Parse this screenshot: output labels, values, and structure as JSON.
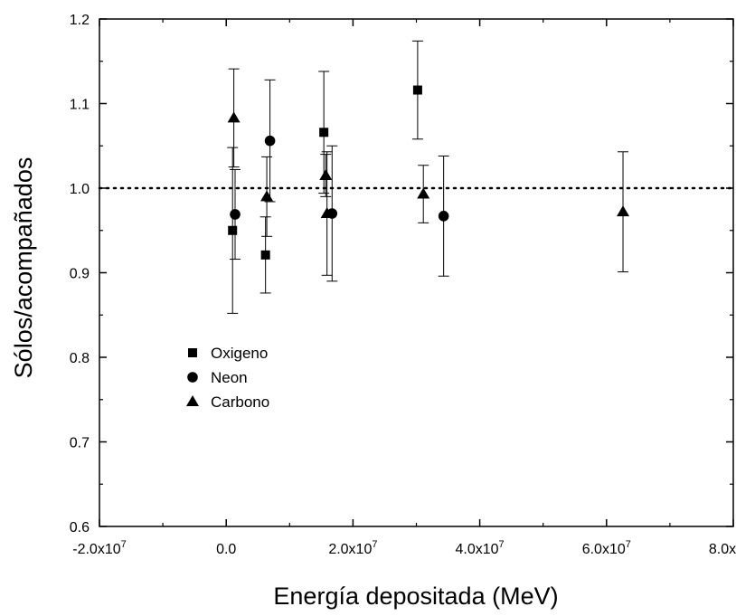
{
  "chart_data": {
    "type": "scatter",
    "title": "",
    "xlabel": "Energía depositada (MeV)",
    "ylabel": "Sólos/acompañados",
    "xlim": [
      -20000000,
      80000000
    ],
    "ylim": [
      0.6,
      1.2
    ],
    "x_ticks": [
      {
        "value": -20000000,
        "mantissa": "-2.0x10",
        "exp": "7"
      },
      {
        "value": 0,
        "mantissa": "0.0",
        "exp": ""
      },
      {
        "value": 20000000,
        "mantissa": "2.0x10",
        "exp": "7"
      },
      {
        "value": 40000000,
        "mantissa": "4.0x10",
        "exp": "7"
      },
      {
        "value": 60000000,
        "mantissa": "6.0x10",
        "exp": "7"
      },
      {
        "value": 80000000,
        "mantissa": "8.0x10",
        "exp": "7"
      }
    ],
    "y_ticks": [
      "0.6",
      "0.7",
      "0.8",
      "0.9",
      "1.0",
      "1.1",
      "1.2"
    ],
    "reference_line": {
      "y": 1.0,
      "style": "dotted"
    },
    "grid": false,
    "legend_position": "center-left",
    "series": [
      {
        "name": "Oxigeno",
        "marker": "square",
        "points": [
          {
            "x": 1000000,
            "y": 0.95,
            "err": 0.098
          },
          {
            "x": 6200000,
            "y": 0.921,
            "err": 0.045
          },
          {
            "x": 15400000,
            "y": 1.066,
            "err": 0.072
          },
          {
            "x": 30200000,
            "y": 1.116,
            "err": 0.058
          }
        ]
      },
      {
        "name": "Neon",
        "marker": "circle",
        "points": [
          {
            "x": 1400000,
            "y": 0.969,
            "err": 0.053
          },
          {
            "x": 6900000,
            "y": 1.056,
            "err": 0.072
          },
          {
            "x": 16700000,
            "y": 0.97,
            "err": 0.08
          },
          {
            "x": 34300000,
            "y": 0.967,
            "err": 0.071
          }
        ]
      },
      {
        "name": "Carbono",
        "marker": "triangle",
        "points": [
          {
            "x": 1200000,
            "y": 1.083,
            "err": 0.058
          },
          {
            "x": 6400000,
            "y": 0.99,
            "err": 0.047
          },
          {
            "x": 15700000,
            "y": 1.015,
            "err": 0.025
          },
          {
            "x": 15900000,
            "y": 0.97,
            "err": 0.073
          },
          {
            "x": 31100000,
            "y": 0.993,
            "err": 0.034
          },
          {
            "x": 62600000,
            "y": 0.972,
            "err": 0.071
          }
        ]
      }
    ]
  }
}
